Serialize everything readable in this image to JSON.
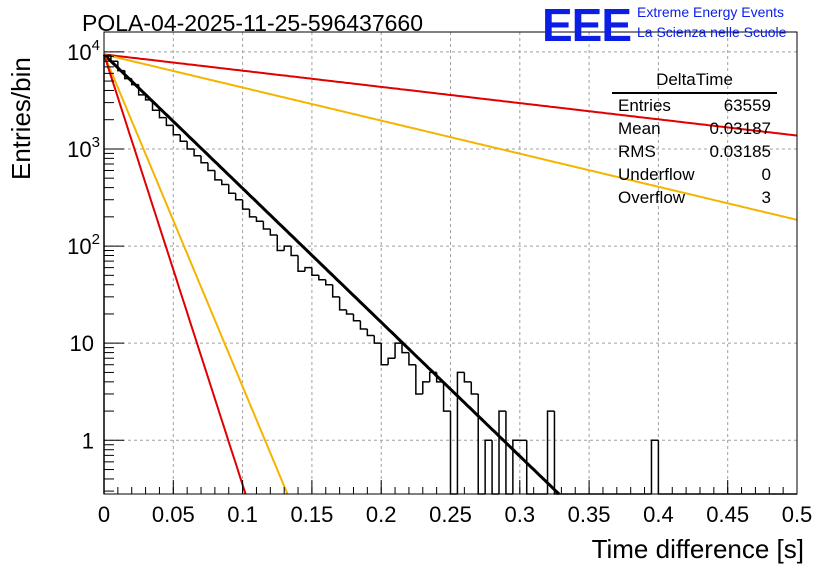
{
  "chart_data": {
    "type": "histogram",
    "title": "POLA-04-2025-11-25-596437660",
    "xlabel": "Time difference [s]",
    "ylabel": "Entries/bin",
    "xlim": [
      0,
      0.5
    ],
    "ylim": [
      0.28,
      16000
    ],
    "yscale": "log",
    "grid": true,
    "x_ticks": [
      "0",
      "0.05",
      "0.1",
      "0.15",
      "0.2",
      "0.25",
      "0.3",
      "0.35",
      "0.4",
      "0.45",
      "0.5"
    ],
    "x_tick_values": [
      0,
      0.05,
      0.1,
      0.15,
      0.2,
      0.25,
      0.3,
      0.35,
      0.4,
      0.45,
      0.5
    ],
    "y_ticks": [
      {
        "value": 10000,
        "base": "10",
        "exp": "4"
      },
      {
        "value": 1000,
        "base": "10",
        "exp": "3"
      },
      {
        "value": 100,
        "base": "10",
        "exp": "2"
      },
      {
        "value": 10,
        "base": "10",
        "exp": ""
      },
      {
        "value": 1,
        "base": "1",
        "exp": ""
      }
    ],
    "histogram": {
      "bin_width": 0.005,
      "x_start": 0,
      "values": [
        9200,
        8000,
        6400,
        5300,
        4600,
        3600,
        3200,
        2500,
        2100,
        1750,
        1400,
        1200,
        1000,
        850,
        720,
        600,
        480,
        430,
        350,
        300,
        240,
        200,
        180,
        150,
        130,
        90,
        100,
        80,
        55,
        60,
        50,
        45,
        40,
        30,
        22,
        20,
        17,
        14,
        12,
        10,
        6,
        7,
        10,
        8,
        6,
        3,
        4,
        5,
        4,
        2,
        0,
        5,
        4,
        3,
        0,
        1,
        0,
        2,
        0,
        1,
        1,
        0,
        0,
        0,
        2,
        0,
        0,
        0,
        0,
        0,
        0,
        0,
        0,
        0,
        0,
        0,
        0,
        0,
        0,
        1,
        0,
        0,
        0,
        0,
        0,
        0,
        0,
        0,
        0,
        0,
        0,
        0,
        0,
        0,
        0,
        0,
        0,
        0,
        0,
        0
      ]
    },
    "curves": [
      {
        "name": "fit",
        "color": "#000000",
        "A": 9400,
        "tau": 0.0315,
        "x_end": 0.34
      },
      {
        "name": "red-slow",
        "color": "#e00000",
        "A": 9400,
        "tau": 0.26,
        "x_end": 0.5
      },
      {
        "name": "orange-slow",
        "color": "#f5b400",
        "A": 9400,
        "tau": 0.1275,
        "x_end": 0.5
      },
      {
        "name": "orange-fast",
        "color": "#f5b400",
        "A": 9400,
        "tau": 0.0127,
        "x_end": 0.15
      },
      {
        "name": "red-fast",
        "color": "#e00000",
        "A": 9400,
        "tau": 0.0098,
        "x_end": 0.12
      }
    ]
  },
  "logo": {
    "mark": "EEE",
    "line1": "Extreme Energy Events",
    "line2": "La Scienza nelle Scuole",
    "color": "#0a1ee6"
  },
  "stats": {
    "title": "DeltaTime",
    "rows": [
      {
        "label": "Entries",
        "value": "63559"
      },
      {
        "label": "Mean",
        "value": "0.03187"
      },
      {
        "label": "RMS",
        "value": "0.03185"
      },
      {
        "label": "Underflow",
        "value": "0"
      },
      {
        "label": "Overflow",
        "value": "3"
      }
    ]
  }
}
